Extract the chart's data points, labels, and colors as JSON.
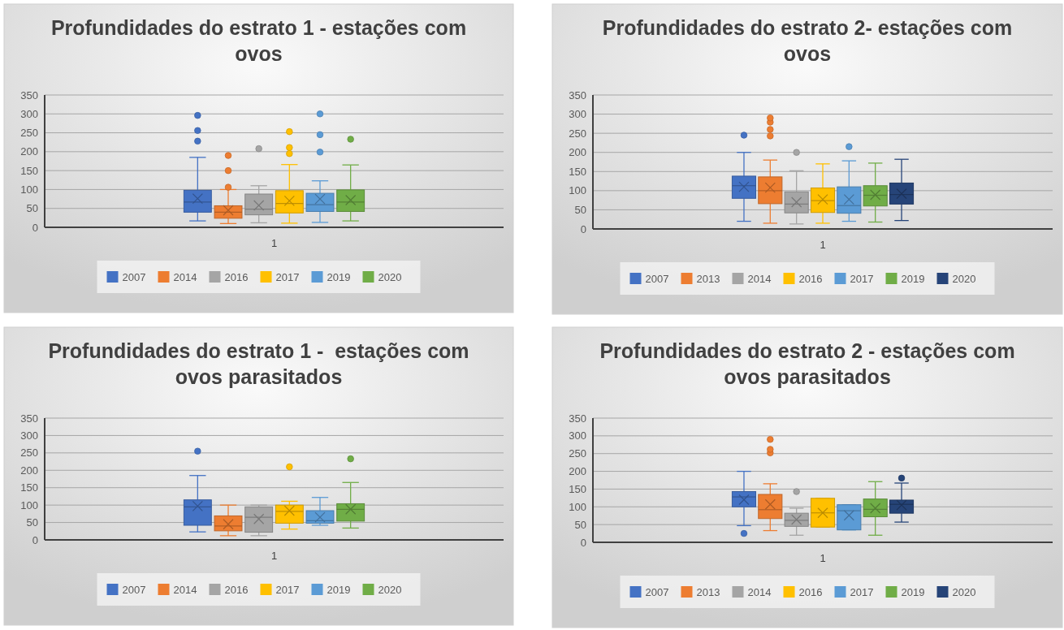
{
  "chart_data": [
    {
      "type": "box",
      "title": "Profundidades do estrato 1 - estações com ovos",
      "categories": [
        "1"
      ],
      "ylim": [
        0,
        350
      ],
      "yticks": [
        0,
        50,
        100,
        150,
        200,
        250,
        300,
        350
      ],
      "grid": "y",
      "legend": "bottom",
      "series": [
        {
          "name": "2007",
          "color": "#4472c4",
          "boxes": [
            {
              "low": 17,
              "q1": 40,
              "median": 67,
              "q3": 98,
              "high": 185,
              "mean": 76,
              "outliers": [
                228,
                256,
                296
              ]
            }
          ]
        },
        {
          "name": "2014",
          "color": "#ed7d31",
          "boxes": [
            {
              "low": 10,
              "q1": 24,
              "median": 40,
              "q3": 57,
              "high": 100,
              "mean": 45,
              "outliers": [
                106,
                150,
                190
              ]
            }
          ]
        },
        {
          "name": "2016",
          "color": "#a5a5a5",
          "boxes": [
            {
              "low": 12,
              "q1": 33,
              "median": 48,
              "q3": 88,
              "high": 110,
              "mean": 58,
              "outliers": [
                208
              ]
            }
          ]
        },
        {
          "name": "2017",
          "color": "#ffc000",
          "boxes": [
            {
              "low": 11,
              "q1": 38,
              "median": 63,
              "q3": 97,
              "high": 166,
              "mean": 70,
              "outliers": [
                195,
                211,
                253
              ]
            }
          ]
        },
        {
          "name": "2019",
          "color": "#5b9bd5",
          "boxes": [
            {
              "low": 13,
              "q1": 42,
              "median": 60,
              "q3": 90,
              "high": 123,
              "mean": 75,
              "outliers": [
                199,
                245,
                300
              ]
            }
          ]
        },
        {
          "name": "2020",
          "color": "#70ad47",
          "boxes": [
            {
              "low": 17,
              "q1": 42,
              "median": 67,
              "q3": 99,
              "high": 165,
              "mean": 72,
              "outliers": [
                233
              ]
            }
          ]
        }
      ]
    },
    {
      "type": "box",
      "title": "Profundidades do estrato 2- estações com ovos",
      "categories": [
        "1"
      ],
      "ylim": [
        0,
        350
      ],
      "yticks": [
        0,
        50,
        100,
        150,
        200,
        250,
        300,
        350
      ],
      "grid": "y",
      "legend": "bottom",
      "series": [
        {
          "name": "2007",
          "color": "#4472c4",
          "boxes": [
            {
              "low": 20,
              "q1": 80,
              "median": 113,
              "q3": 138,
              "high": 200,
              "mean": 110,
              "outliers": [
                245
              ]
            }
          ]
        },
        {
          "name": "2013",
          "color": "#ed7d31",
          "boxes": [
            {
              "low": 15,
              "q1": 66,
              "median": 100,
              "q3": 136,
              "high": 180,
              "mean": 108,
              "outliers": [
                243,
                260,
                279,
                290
              ]
            }
          ]
        },
        {
          "name": "2014",
          "color": "#a5a5a5",
          "boxes": [
            {
              "low": 13,
              "q1": 42,
              "median": 65,
              "q3": 97,
              "high": 152,
              "mean": 70,
              "outliers": [
                200
              ]
            }
          ]
        },
        {
          "name": "2016",
          "color": "#ffc000",
          "boxes": [
            {
              "low": 15,
              "q1": 43,
              "median": 74,
              "q3": 107,
              "high": 170,
              "mean": 77
            }
          ]
        },
        {
          "name": "2017",
          "color": "#5b9bd5",
          "boxes": [
            {
              "low": 20,
              "q1": 41,
              "median": 61,
              "q3": 110,
              "high": 178,
              "mean": 77,
              "outliers": [
                215
              ]
            }
          ]
        },
        {
          "name": "2019",
          "color": "#70ad47",
          "boxes": [
            {
              "low": 18,
              "q1": 60,
              "median": 88,
              "q3": 113,
              "high": 172,
              "mean": 89
            }
          ]
        },
        {
          "name": "2020",
          "color": "#264478",
          "boxes": [
            {
              "low": 22,
              "q1": 65,
              "median": 90,
              "q3": 120,
              "high": 182,
              "mean": 92
            }
          ]
        }
      ]
    },
    {
      "type": "box",
      "title": "Profundidades do estrato 1 -  estações com ovos parasitados",
      "categories": [
        "1"
      ],
      "ylim": [
        0,
        350
      ],
      "yticks": [
        0,
        50,
        100,
        150,
        200,
        250,
        300,
        350
      ],
      "grid": "y",
      "legend": "bottom",
      "series": [
        {
          "name": "2007",
          "color": "#4472c4",
          "boxes": [
            {
              "low": 23,
              "q1": 42,
              "median": 95,
              "q3": 115,
              "high": 185,
              "mean": 97,
              "outliers": [
                255
              ]
            }
          ]
        },
        {
          "name": "2014",
          "color": "#ed7d31",
          "boxes": [
            {
              "low": 12,
              "q1": 26,
              "median": 40,
              "q3": 69,
              "high": 100,
              "mean": 45
            }
          ]
        },
        {
          "name": "2016",
          "color": "#a5a5a5",
          "boxes": [
            {
              "low": 12,
              "q1": 22,
              "median": 65,
              "q3": 95,
              "high": 100,
              "mean": 60
            }
          ]
        },
        {
          "name": "2017",
          "color": "#ffc000",
          "boxes": [
            {
              "low": 31,
              "q1": 48,
              "median": 82,
              "q3": 100,
              "high": 111,
              "mean": 84,
              "outliers": [
                210
              ]
            }
          ]
        },
        {
          "name": "2019",
          "color": "#5b9bd5",
          "boxes": [
            {
              "low": 42,
              "q1": 48,
              "median": 55,
              "q3": 84,
              "high": 122,
              "mean": 65
            }
          ]
        },
        {
          "name": "2020",
          "color": "#70ad47",
          "boxes": [
            {
              "low": 34,
              "q1": 54,
              "median": 88,
              "q3": 104,
              "high": 165,
              "mean": 88,
              "outliers": [
                233
              ]
            }
          ]
        }
      ]
    },
    {
      "type": "box",
      "title": "Profundidades do estrato 2 - estações com ovos parasitados",
      "categories": [
        "1"
      ],
      "ylim": [
        0,
        350
      ],
      "yticks": [
        0,
        50,
        100,
        150,
        200,
        250,
        300,
        350
      ],
      "grid": "y",
      "legend": "bottom",
      "series": [
        {
          "name": "2007",
          "color": "#4472c4",
          "boxes": [
            {
              "low": 47,
              "q1": 100,
              "median": 128,
              "q3": 143,
              "high": 200,
              "mean": 120,
              "outliers": [
                25
              ]
            }
          ]
        },
        {
          "name": "2013",
          "color": "#ed7d31",
          "boxes": [
            {
              "low": 33,
              "q1": 67,
              "median": 92,
              "q3": 135,
              "high": 165,
              "mean": 107,
              "outliers": [
                252,
                262,
                290
              ]
            }
          ]
        },
        {
          "name": "2014",
          "color": "#a5a5a5",
          "boxes": [
            {
              "low": 20,
              "q1": 45,
              "median": 62,
              "q3": 82,
              "high": 96,
              "mean": 64,
              "outliers": [
                143
              ]
            }
          ]
        },
        {
          "name": "2016",
          "color": "#ffc000",
          "boxes": [
            {
              "low": 43,
              "q1": 43,
              "median": 83,
              "q3": 124,
              "high": 124,
              "mean": 83
            }
          ]
        },
        {
          "name": "2017",
          "color": "#5b9bd5",
          "boxes": [
            {
              "low": 35,
              "q1": 35,
              "median": 89,
              "q3": 106,
              "high": 106,
              "mean": 76
            }
          ]
        },
        {
          "name": "2019",
          "color": "#70ad47",
          "boxes": [
            {
              "low": 20,
              "q1": 72,
              "median": 93,
              "q3": 122,
              "high": 171,
              "mean": 96
            }
          ]
        },
        {
          "name": "2020",
          "color": "#264478",
          "boxes": [
            {
              "low": 57,
              "q1": 82,
              "median": 107,
              "q3": 119,
              "high": 167,
              "mean": 105,
              "outliers": [
                181
              ]
            }
          ]
        }
      ]
    }
  ]
}
